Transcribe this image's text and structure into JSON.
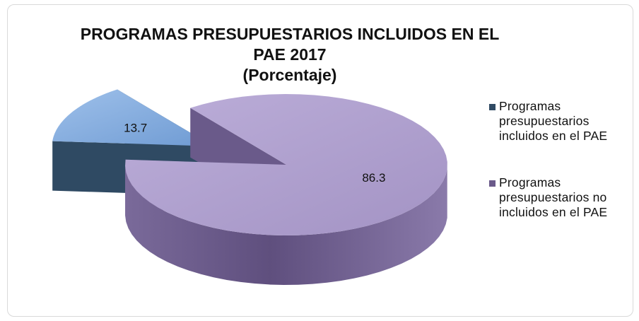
{
  "chart_data": {
    "type": "pie",
    "title_lines": [
      "PROGRAMAS PRESUPUESTARIOS INCLUIDOS EN EL",
      "PAE 2017",
      "(Porcentaje)"
    ],
    "categories": [
      "Programas presupuestarios incluidos en el PAE",
      "Programas presupuestarios no incluidos en el PAE"
    ],
    "values": [
      13.7,
      86.3
    ],
    "data_labels": [
      "13.7",
      "86.3"
    ],
    "legend": {
      "placement": "right",
      "entries": [
        "Programas\npresupuestarios\nincluidos en el PAE",
        "Programas\npresupuestarios no\nincluidos en el PAE"
      ]
    },
    "exploded": [
      true,
      false
    ],
    "colors": [
      "#7ea8dc",
      "#ab9ccb"
    ],
    "side_colors": [
      "#2f4a63",
      "#6a5a8a"
    ]
  }
}
